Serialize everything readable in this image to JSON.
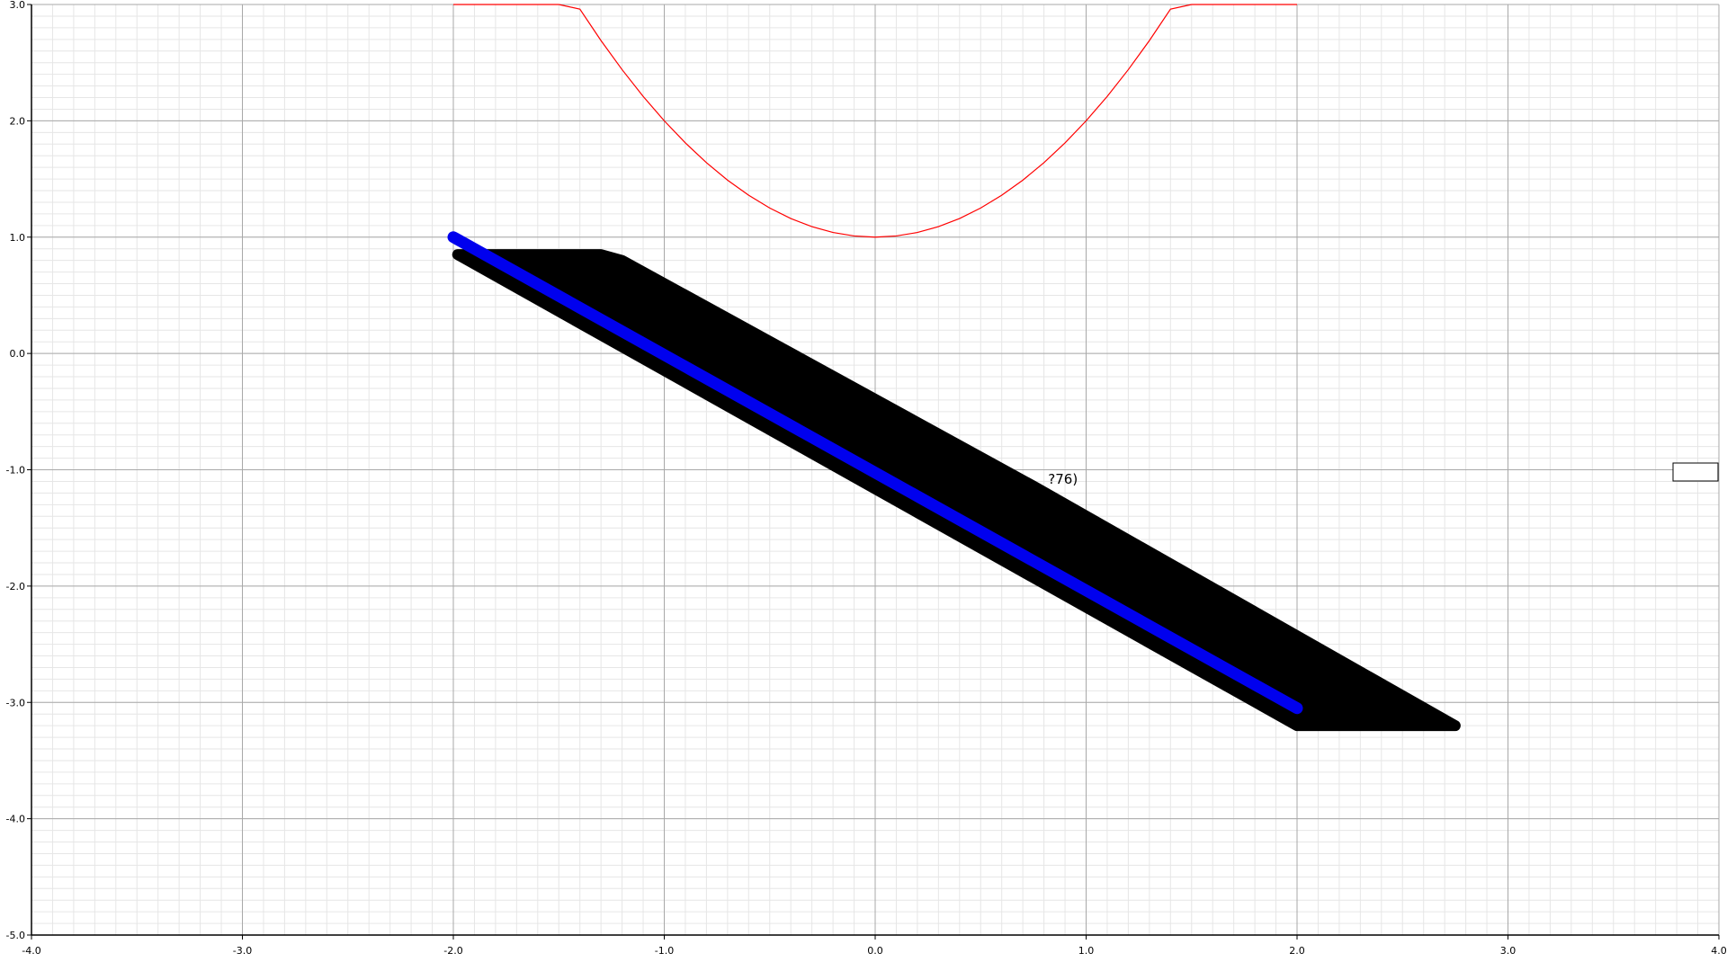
{
  "chart_data": {
    "type": "line",
    "title": "",
    "xlabel": "",
    "ylabel": "",
    "xlim": [
      -4.0,
      4.0
    ],
    "ylim": [
      -5.0,
      3.0
    ],
    "grid": true,
    "x_tick_labels": [
      "-4.0",
      "-3.0",
      "-2.0",
      "-1.0",
      "0.0",
      "1.0",
      "2.0",
      "3.0",
      "4.0"
    ],
    "y_tick_labels": [
      "-5.0",
      "-4.0",
      "-3.0",
      "-2.0",
      "-1.0",
      "0.0",
      "1.0",
      "2.0",
      "3.0"
    ],
    "series": [
      {
        "kind": "curve",
        "color": "#ff0000",
        "x": [
          -2.0,
          -1.5,
          -1.4,
          -1.3,
          -1.2,
          -1.1,
          -1.0,
          -0.9,
          -0.8,
          -0.7,
          -0.6,
          -0.5,
          -0.4,
          -0.3,
          -0.2,
          -0.1,
          0.0,
          0.1,
          0.2,
          0.3,
          0.4,
          0.5,
          0.6,
          0.7,
          0.8,
          0.9,
          1.0,
          1.1,
          1.2,
          1.3,
          1.4,
          1.5,
          2.0
        ],
        "y": [
          3.0,
          3.0,
          2.96,
          2.69,
          2.44,
          2.21,
          2.0,
          1.81,
          1.64,
          1.49,
          1.36,
          1.25,
          1.16,
          1.09,
          1.04,
          1.01,
          1.0,
          1.01,
          1.04,
          1.09,
          1.16,
          1.25,
          1.36,
          1.49,
          1.64,
          1.81,
          2.0,
          2.21,
          2.44,
          2.69,
          2.96,
          3.0,
          3.0
        ]
      },
      {
        "kind": "band",
        "color": "#000000",
        "x": [
          -1.98,
          -1.3,
          -1.2,
          0.76,
          2.75,
          2.0
        ],
        "y": [
          0.85,
          0.85,
          0.8,
          -1.15,
          -3.2,
          -3.2
        ]
      },
      {
        "kind": "segment",
        "color": "#0000ee",
        "x": [
          -2.0,
          2.0
        ],
        "y": [
          1.0,
          -3.05
        ]
      }
    ],
    "annotations": [
      {
        "text": "?76)",
        "x": 0.82,
        "y": -1.12
      }
    ]
  }
}
